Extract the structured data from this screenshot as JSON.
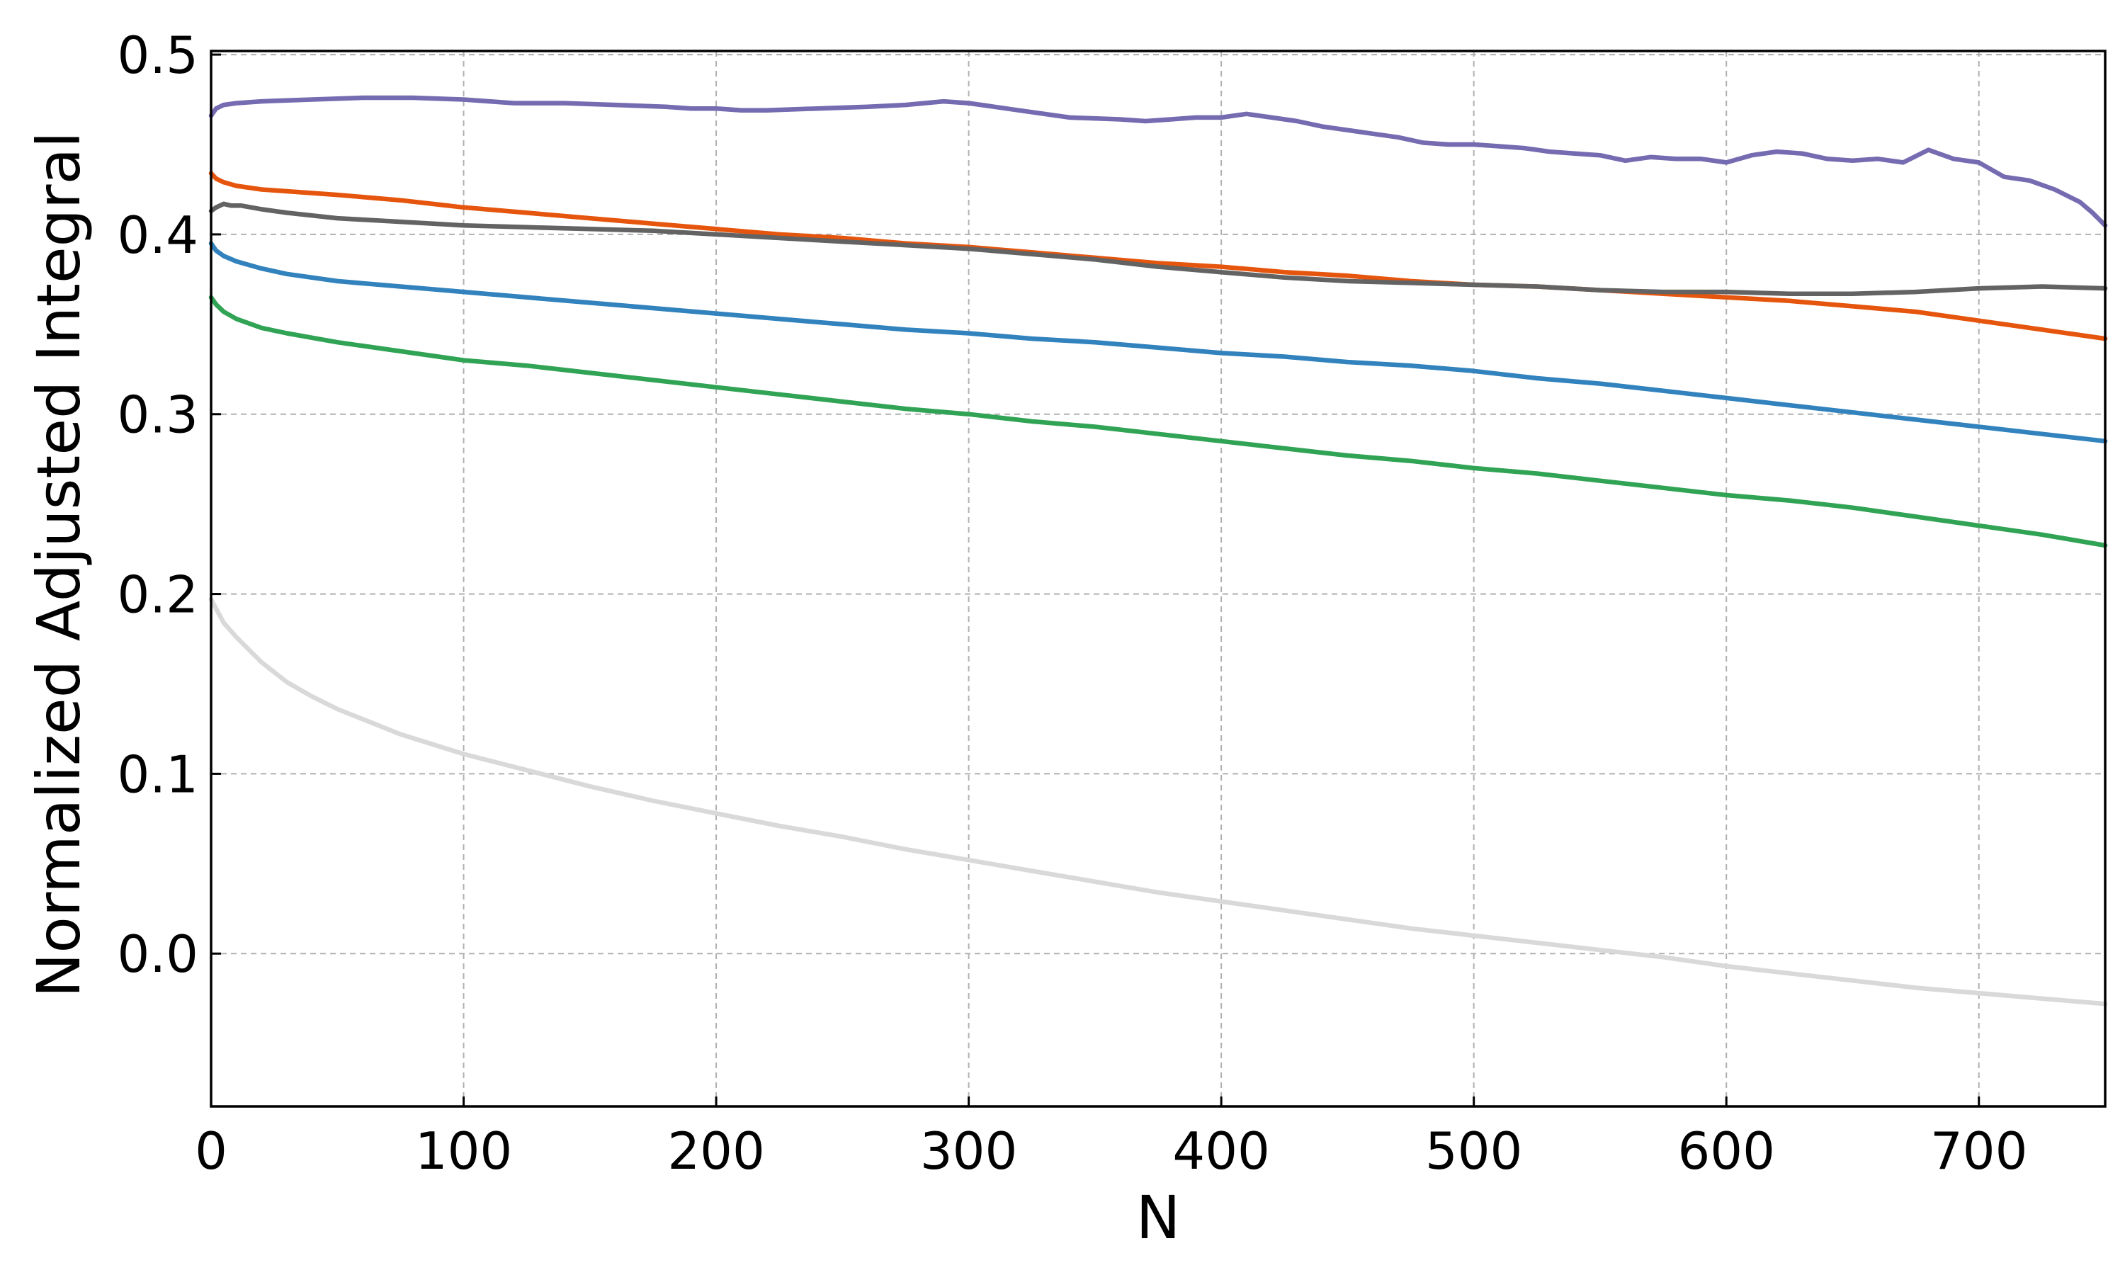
{
  "chart_data": {
    "type": "line",
    "title": "",
    "xlabel": "N",
    "ylabel": "Normalized Adjusted Integral",
    "xlim": [
      0,
      750
    ],
    "ylim": [
      -0.085,
      0.502
    ],
    "xticks": [
      0,
      100,
      200,
      300,
      400,
      500,
      600,
      700
    ],
    "xtick_labels": [
      "0",
      "100",
      "200",
      "300",
      "400",
      "500",
      "600",
      "700"
    ],
    "yticks": [
      0.0,
      0.1,
      0.2,
      0.3,
      0.4,
      0.5
    ],
    "ytick_labels": [
      "0.0",
      "0.1",
      "0.2",
      "0.3",
      "0.4",
      "0.5"
    ],
    "grid": true,
    "legend": "none",
    "series": [
      {
        "color": "#d9d9d9",
        "x": [
          0,
          5,
          10,
          20,
          30,
          40,
          50,
          75,
          100,
          125,
          150,
          175,
          200,
          225,
          250,
          275,
          300,
          325,
          350,
          375,
          400,
          425,
          450,
          475,
          500,
          525,
          550,
          575,
          600,
          625,
          650,
          675,
          700,
          725,
          750
        ],
        "y": [
          0.197,
          0.184,
          0.176,
          0.162,
          0.151,
          0.143,
          0.136,
          0.122,
          0.111,
          0.102,
          0.093,
          0.085,
          0.078,
          0.071,
          0.065,
          0.058,
          0.052,
          0.046,
          0.04,
          0.034,
          0.029,
          0.024,
          0.019,
          0.014,
          0.01,
          0.006,
          0.002,
          -0.002,
          -0.007,
          -0.011,
          -0.015,
          -0.019,
          -0.022,
          -0.025,
          -0.028
        ]
      },
      {
        "color": "#31a354",
        "x": [
          0,
          2,
          5,
          10,
          20,
          30,
          50,
          75,
          100,
          125,
          150,
          175,
          200,
          225,
          250,
          275,
          300,
          325,
          350,
          375,
          400,
          425,
          450,
          475,
          500,
          525,
          550,
          575,
          600,
          625,
          650,
          675,
          700,
          725,
          750
        ],
        "y": [
          0.365,
          0.361,
          0.357,
          0.353,
          0.348,
          0.345,
          0.34,
          0.335,
          0.33,
          0.327,
          0.323,
          0.319,
          0.315,
          0.311,
          0.307,
          0.303,
          0.3,
          0.296,
          0.293,
          0.289,
          0.285,
          0.281,
          0.277,
          0.274,
          0.27,
          0.267,
          0.263,
          0.259,
          0.255,
          0.252,
          0.248,
          0.243,
          0.238,
          0.233,
          0.227
        ]
      },
      {
        "color": "#3182bd",
        "x": [
          0,
          2,
          5,
          10,
          20,
          30,
          50,
          75,
          100,
          125,
          150,
          175,
          200,
          225,
          250,
          275,
          300,
          325,
          350,
          375,
          400,
          425,
          450,
          475,
          500,
          525,
          550,
          575,
          600,
          625,
          650,
          675,
          700,
          725,
          750
        ],
        "y": [
          0.395,
          0.391,
          0.388,
          0.385,
          0.381,
          0.378,
          0.374,
          0.371,
          0.368,
          0.365,
          0.362,
          0.359,
          0.356,
          0.353,
          0.35,
          0.347,
          0.345,
          0.342,
          0.34,
          0.337,
          0.334,
          0.332,
          0.329,
          0.327,
          0.324,
          0.32,
          0.317,
          0.313,
          0.309,
          0.305,
          0.301,
          0.297,
          0.293,
          0.289,
          0.285
        ]
      },
      {
        "color": "#e6550d",
        "x": [
          0,
          2,
          5,
          10,
          20,
          30,
          50,
          75,
          100,
          125,
          150,
          175,
          200,
          225,
          250,
          275,
          300,
          325,
          350,
          375,
          400,
          425,
          450,
          475,
          500,
          525,
          550,
          575,
          600,
          625,
          650,
          675,
          700,
          725,
          750
        ],
        "y": [
          0.434,
          0.431,
          0.429,
          0.427,
          0.425,
          0.424,
          0.422,
          0.419,
          0.415,
          0.412,
          0.409,
          0.406,
          0.403,
          0.4,
          0.398,
          0.395,
          0.393,
          0.39,
          0.387,
          0.384,
          0.382,
          0.379,
          0.377,
          0.374,
          0.372,
          0.371,
          0.369,
          0.367,
          0.365,
          0.363,
          0.36,
          0.357,
          0.352,
          0.347,
          0.342
        ]
      },
      {
        "color": "#636363",
        "x": [
          0,
          2,
          5,
          8,
          12,
          20,
          30,
          50,
          75,
          100,
          125,
          150,
          175,
          200,
          225,
          250,
          275,
          300,
          325,
          350,
          375,
          400,
          425,
          450,
          475,
          500,
          525,
          550,
          575,
          600,
          625,
          650,
          675,
          700,
          725,
          750
        ],
        "y": [
          0.413,
          0.415,
          0.417,
          0.416,
          0.416,
          0.414,
          0.412,
          0.409,
          0.407,
          0.405,
          0.404,
          0.403,
          0.402,
          0.4,
          0.398,
          0.396,
          0.394,
          0.392,
          0.389,
          0.386,
          0.382,
          0.379,
          0.376,
          0.374,
          0.373,
          0.372,
          0.371,
          0.369,
          0.368,
          0.368,
          0.367,
          0.367,
          0.368,
          0.37,
          0.371,
          0.37
        ]
      },
      {
        "color": "#756bb1",
        "x": [
          0,
          2,
          5,
          10,
          20,
          40,
          60,
          80,
          100,
          120,
          140,
          160,
          180,
          190,
          200,
          210,
          220,
          240,
          260,
          275,
          290,
          300,
          310,
          320,
          340,
          360,
          370,
          380,
          390,
          400,
          410,
          420,
          430,
          440,
          450,
          460,
          470,
          480,
          490,
          500,
          510,
          520,
          530,
          540,
          550,
          560,
          570,
          580,
          590,
          600,
          610,
          620,
          630,
          640,
          650,
          660,
          670,
          680,
          690,
          700,
          710,
          720,
          730,
          740,
          745,
          750
        ],
        "y": [
          0.466,
          0.47,
          0.472,
          0.473,
          0.474,
          0.475,
          0.476,
          0.476,
          0.475,
          0.473,
          0.473,
          0.472,
          0.471,
          0.47,
          0.47,
          0.469,
          0.469,
          0.47,
          0.471,
          0.472,
          0.474,
          0.473,
          0.471,
          0.469,
          0.465,
          0.464,
          0.463,
          0.464,
          0.465,
          0.465,
          0.467,
          0.465,
          0.463,
          0.46,
          0.458,
          0.456,
          0.454,
          0.451,
          0.45,
          0.45,
          0.449,
          0.448,
          0.446,
          0.445,
          0.444,
          0.441,
          0.443,
          0.442,
          0.442,
          0.44,
          0.444,
          0.446,
          0.445,
          0.442,
          0.441,
          0.442,
          0.44,
          0.447,
          0.442,
          0.44,
          0.432,
          0.43,
          0.425,
          0.418,
          0.412,
          0.405
        ]
      }
    ]
  }
}
